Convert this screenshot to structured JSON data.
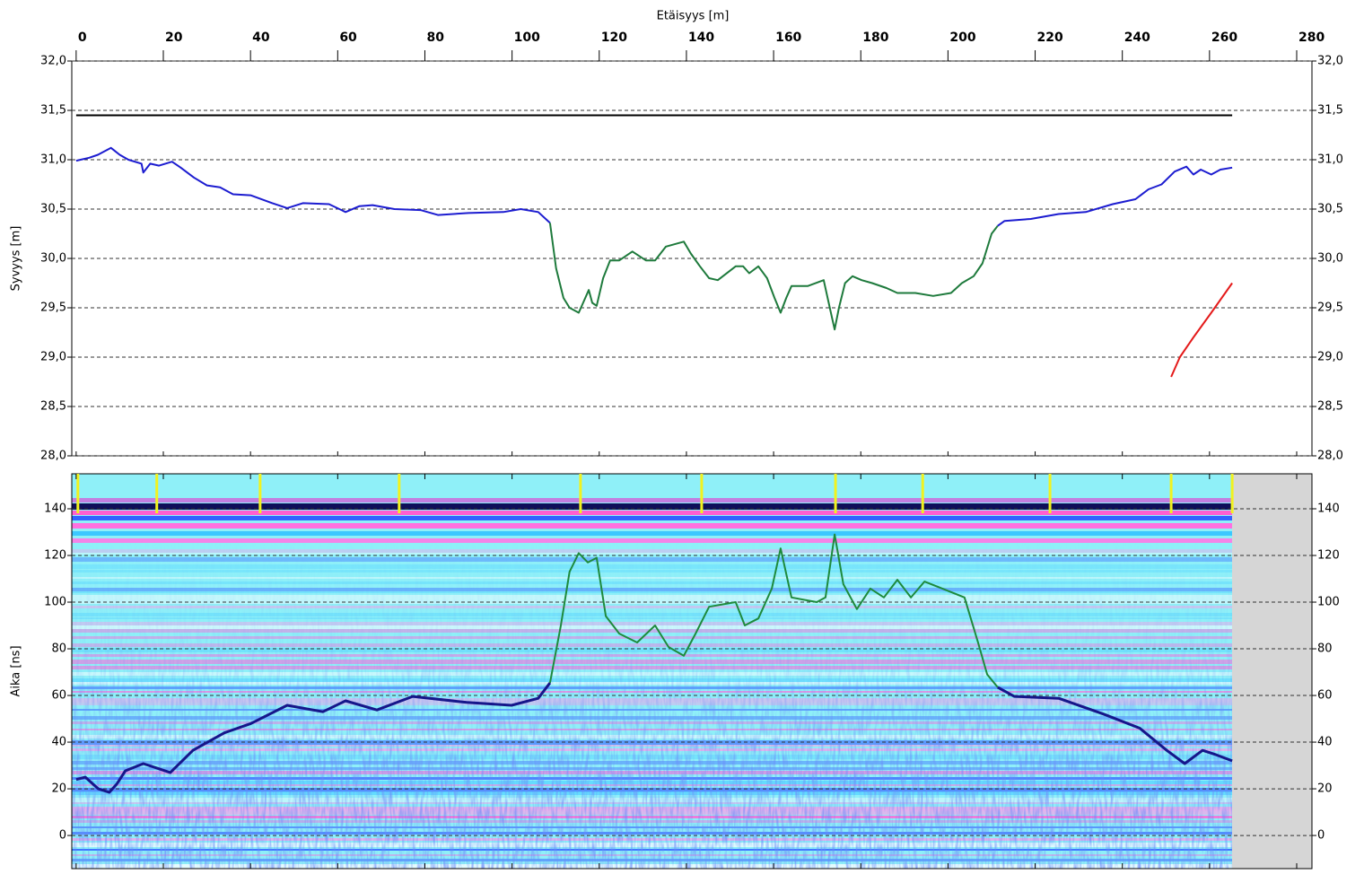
{
  "chart_data": [
    {
      "type": "line",
      "title": "Etäisyys [m]",
      "ylabel": "Syvyys [m]",
      "xlim": [
        -1,
        283.5
      ],
      "ylim": [
        28,
        32
      ],
      "xticks": [
        0,
        20,
        40,
        60,
        80,
        100,
        120,
        140,
        160,
        180,
        200,
        220,
        240,
        260,
        280
      ],
      "yticks": [
        {
          "value": 28,
          "label": "28,0"
        },
        {
          "value": 28.5,
          "label": "28,5"
        },
        {
          "value": 29,
          "label": "29,0"
        },
        {
          "value": 29.5,
          "label": "29,5"
        },
        {
          "value": 30,
          "label": "30,0"
        },
        {
          "value": 30.5,
          "label": "30,5"
        },
        {
          "value": 31,
          "label": "31,0"
        },
        {
          "value": 31.5,
          "label": "31,5"
        },
        {
          "value": 32,
          "label": "32,0"
        }
      ],
      "grid": true,
      "series": [
        {
          "color": "#000000",
          "x": [
            0,
            265.2
          ],
          "values": [
            31.45,
            31.45
          ]
        },
        {
          "color": "#1c1cd0",
          "x": [
            0,
            3,
            5,
            8,
            10,
            12,
            15,
            15.4,
            17,
            19,
            22,
            24,
            27,
            30,
            33,
            36,
            40,
            45,
            48.4,
            52,
            58,
            61.8,
            65,
            68,
            73,
            79,
            83,
            90,
            98,
            102,
            106,
            108.7
          ],
          "values": [
            30.99,
            31.02,
            31.05,
            31.12,
            31.05,
            31.0,
            30.96,
            30.87,
            30.96,
            30.94,
            30.98,
            30.92,
            30.82,
            30.74,
            30.72,
            30.65,
            30.64,
            30.56,
            30.51,
            30.56,
            30.55,
            30.47,
            30.53,
            30.54,
            30.5,
            30.49,
            30.44,
            30.46,
            30.47,
            30.5,
            30.47,
            30.36
          ]
        },
        {
          "color": "#1e7a3c",
          "x": [
            108.7,
            110.1,
            111.8,
            113.2,
            115.3,
            116.3,
            117.6,
            118.4,
            119.4,
            120.9,
            122.5,
            124.6,
            127.6,
            130.7,
            132.8,
            135.3,
            139.4,
            141,
            143.1,
            145.2,
            147.2,
            151.3,
            153,
            154.4,
            156.5,
            158.5,
            160.2,
            161.6,
            162.9,
            164.1,
            167.8,
            171.5,
            172.9,
            174,
            175,
            176.4,
            178.1,
            180.2,
            182.6,
            185.9,
            188.4,
            192.5,
            196.6,
            200.7,
            203.2,
            205.9,
            207.9,
            210,
            211.4
          ],
          "values": [
            30.36,
            29.9,
            29.6,
            29.5,
            29.45,
            29.55,
            29.68,
            29.55,
            29.52,
            29.8,
            29.98,
            29.98,
            30.07,
            29.98,
            29.98,
            30.12,
            30.17,
            30.05,
            29.92,
            29.8,
            29.78,
            29.92,
            29.92,
            29.85,
            29.92,
            29.8,
            29.6,
            29.45,
            29.6,
            29.72,
            29.72,
            29.78,
            29.5,
            29.28,
            29.5,
            29.75,
            29.82,
            29.78,
            29.75,
            29.7,
            29.65,
            29.65,
            29.62,
            29.65,
            29.75,
            29.82,
            29.95,
            30.25,
            30.33
          ]
        },
        {
          "color": "#1c1cd0",
          "x": [
            211.4,
            213,
            219,
            225.4,
            231.6,
            237.8,
            243,
            246,
            249,
            252,
            254.7,
            256.3,
            258,
            260.4,
            262.5,
            265.2
          ],
          "values": [
            30.33,
            30.38,
            30.4,
            30.45,
            30.47,
            30.55,
            30.6,
            30.7,
            30.75,
            30.88,
            30.93,
            30.85,
            30.9,
            30.85,
            30.9,
            30.92
          ]
        },
        {
          "color": "#e41a1a",
          "x": [
            251.2,
            253.2,
            256.3,
            260.4,
            265.2
          ],
          "values": [
            28.8,
            29.0,
            29.2,
            29.45,
            29.75
          ]
        }
      ]
    },
    {
      "type": "line",
      "ylabel": "Aika [ns]",
      "xlim": [
        -1,
        283.5
      ],
      "ylim": [
        -14.2,
        155
      ],
      "yticks": [
        0,
        20,
        40,
        60,
        80,
        100,
        120,
        140
      ],
      "grid": true,
      "series": [
        {
          "color": "#16168a",
          "x": [
            0,
            2.1,
            5.1,
            7.6,
            9.3,
            11.3,
            15.4,
            21.6,
            26.8,
            34,
            40.1,
            48.4,
            56.6,
            61.8,
            69,
            77.2,
            89.6,
            99.9,
            106,
            108.7
          ],
          "values": [
            24,
            25,
            20,
            18.5,
            22,
            27.7,
            30.8,
            27,
            36.5,
            44,
            48,
            55.8,
            53,
            57.7,
            53.8,
            59.6,
            57,
            55.8,
            58.8,
            65.4
          ]
        },
        {
          "color": "#1e8a3c",
          "x": [
            108.7,
            111.2,
            113.2,
            115.3,
            117.4,
            119.4,
            121.5,
            124.6,
            128.7,
            132.8,
            135.9,
            139.4,
            142.1,
            145.2,
            151.3,
            153.4,
            156.5,
            159.6,
            161.6,
            164.1,
            169.9,
            171.9,
            174,
            176,
            179.1,
            182.2,
            185.3,
            188.4,
            191.5,
            194.6,
            198.7,
            203.8,
            206.9,
            209,
            211.4
          ],
          "values": [
            65.4,
            90,
            113,
            121,
            117,
            119,
            94,
            86.5,
            82.7,
            90,
            80.8,
            77,
            86.5,
            98,
            100,
            90,
            93,
            105.8,
            123,
            102,
            100,
            102,
            129,
            107.7,
            97,
            105.8,
            102,
            109.6,
            102,
            108.8,
            105.8,
            102,
            82.7,
            69,
            63.5
          ]
        },
        {
          "color": "#16168a",
          "x": [
            211.4,
            215.2,
            225.4,
            235.7,
            244,
            250.2,
            254.3,
            258.4,
            261.5,
            265.2
          ],
          "values": [
            63.5,
            59.6,
            58.8,
            52,
            46,
            36.5,
            30.8,
            36.5,
            34.6,
            32
          ]
        }
      ],
      "markers": {
        "color": "#f2f21e",
        "x": [
          0.4,
          18.5,
          42.2,
          74.1,
          115.7,
          143.5,
          174.2,
          194.2,
          223.4,
          251.2,
          265.2
        ]
      }
    }
  ]
}
